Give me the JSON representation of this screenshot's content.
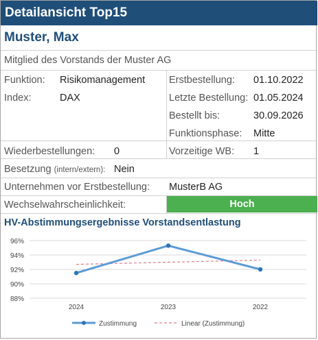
{
  "header": {
    "title": "Detailansicht Top15"
  },
  "person": {
    "name": "Muster, Max",
    "subtitle": "Mitglied des Vorstands der Muster AG"
  },
  "details": {
    "funktion_label": "Funktion:",
    "funktion_value": "Risikomanagement",
    "index_label": "Index:",
    "index_value": "DAX",
    "erstbestellung_label": "Erstbestellung:",
    "erstbestellung_value": "01.10.2022",
    "letzte_label": "Letzte Bestellung:",
    "letzte_value": "01.05.2024",
    "bestellt_label": "Bestellt bis:",
    "bestellt_value": "30.09.2026",
    "phase_label": "Funktionsphase:",
    "phase_value": "Mitte"
  },
  "stats": {
    "wiederbestellungen_label": "Wiederbestellungen:",
    "wiederbestellungen_value": "0",
    "vorzeitige_label": "Vorzeitige WB:",
    "vorzeitige_value": "1",
    "besetzung_label": "Besetzung",
    "besetzung_hint": "(intern/extern):",
    "besetzung_value": "Nein",
    "unternehmen_label": "Unternehmen vor Erstbestellung:",
    "unternehmen_value": "MusterB AG",
    "wechsel_label": "Wechselwahrscheinlichkeit:",
    "wechsel_value": "Hoch"
  },
  "colors": {
    "header_bg": "#1f4e79",
    "high_badge": "#4caf50",
    "series_line": "#5b9bd5",
    "trend_line": "#e07c8a"
  },
  "chart_data": {
    "type": "line",
    "title": "HV-Abstimmungsergebnisse Vorstandsentlastung",
    "categories": [
      "2024",
      "2023",
      "2022"
    ],
    "series": [
      {
        "name": "Zustimmung",
        "values": [
          91.5,
          95.3,
          92.0
        ]
      },
      {
        "name": "Linear (Zustimmung)",
        "values": [
          92.7,
          93.0,
          93.3
        ]
      }
    ],
    "ylim": [
      88,
      96
    ],
    "yticks": [
      "88%",
      "90%",
      "92%",
      "94%",
      "96%"
    ],
    "grid": true,
    "legend": "bottom"
  }
}
